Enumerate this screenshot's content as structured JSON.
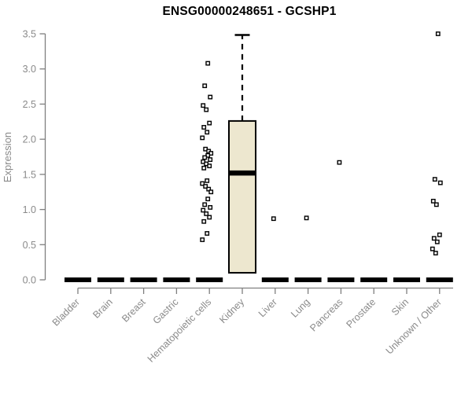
{
  "chart_data": {
    "type": "boxplot",
    "title": "ENSG00000248651 - GCSHP1",
    "ylabel": "Expression",
    "ylim": [
      0.0,
      3.5
    ],
    "yticks": [
      0.0,
      0.5,
      1.0,
      1.5,
      2.0,
      2.5,
      3.0,
      3.5
    ],
    "grid": false,
    "legend": null,
    "categories": [
      "Bladder",
      "Brain",
      "Breast",
      "Gastric",
      "Hematopoietic cells",
      "Kidney",
      "Liver",
      "Lung",
      "Pancreas",
      "Prostate",
      "Skin",
      "Unknown / Other"
    ],
    "boxes": [
      {
        "category": "Bladder",
        "flat_zero": true,
        "median": 0.0
      },
      {
        "category": "Brain",
        "flat_zero": true,
        "median": 0.0
      },
      {
        "category": "Breast",
        "flat_zero": true,
        "median": 0.0
      },
      {
        "category": "Gastric",
        "flat_zero": true,
        "median": 0.0
      },
      {
        "category": "Hematopoietic cells",
        "flat_zero": true,
        "median": 0.0
      },
      {
        "category": "Kidney",
        "flat_zero": false,
        "q1": 0.1,
        "median": 1.52,
        "q3": 2.26,
        "whisker_high": 3.5
      },
      {
        "category": "Liver",
        "flat_zero": true,
        "median": 0.0
      },
      {
        "category": "Lung",
        "flat_zero": true,
        "median": 0.0
      },
      {
        "category": "Pancreas",
        "flat_zero": true,
        "median": 0.0
      },
      {
        "category": "Prostate",
        "flat_zero": true,
        "median": 0.0
      },
      {
        "category": "Skin",
        "flat_zero": true,
        "median": 0.0
      },
      {
        "category": "Unknown / Other",
        "flat_zero": true,
        "median": 0.0
      }
    ],
    "outliers": {
      "Hematopoietic cells": [
        3.08,
        2.76,
        2.6,
        2.48,
        2.42,
        2.23,
        2.17,
        2.1,
        2.02,
        1.86,
        1.83,
        1.8,
        1.77,
        1.74,
        1.71,
        1.68,
        1.65,
        1.62,
        1.59,
        1.41,
        1.37,
        1.33,
        1.29,
        1.25,
        1.15,
        1.07,
        1.03,
        0.99,
        0.94,
        0.89,
        0.83,
        0.66,
        0.57
      ],
      "Liver": [
        0.87
      ],
      "Lung": [
        0.88
      ],
      "Pancreas": [
        1.67
      ],
      "Unknown / Other": [
        3.5,
        1.43,
        1.38,
        1.12,
        1.07,
        0.64,
        0.59,
        0.54,
        0.44,
        0.38
      ]
    },
    "colors": {
      "box_fill": "#EDE7CF",
      "box_border": "#000000",
      "median": "#000000",
      "zero_bar": "#000000",
      "axis": "#7f7f7f",
      "tick_label": "#8a8a8a",
      "title": "#000000",
      "outlier_fill": "#ffffff",
      "outlier_border": "#000000"
    }
  }
}
